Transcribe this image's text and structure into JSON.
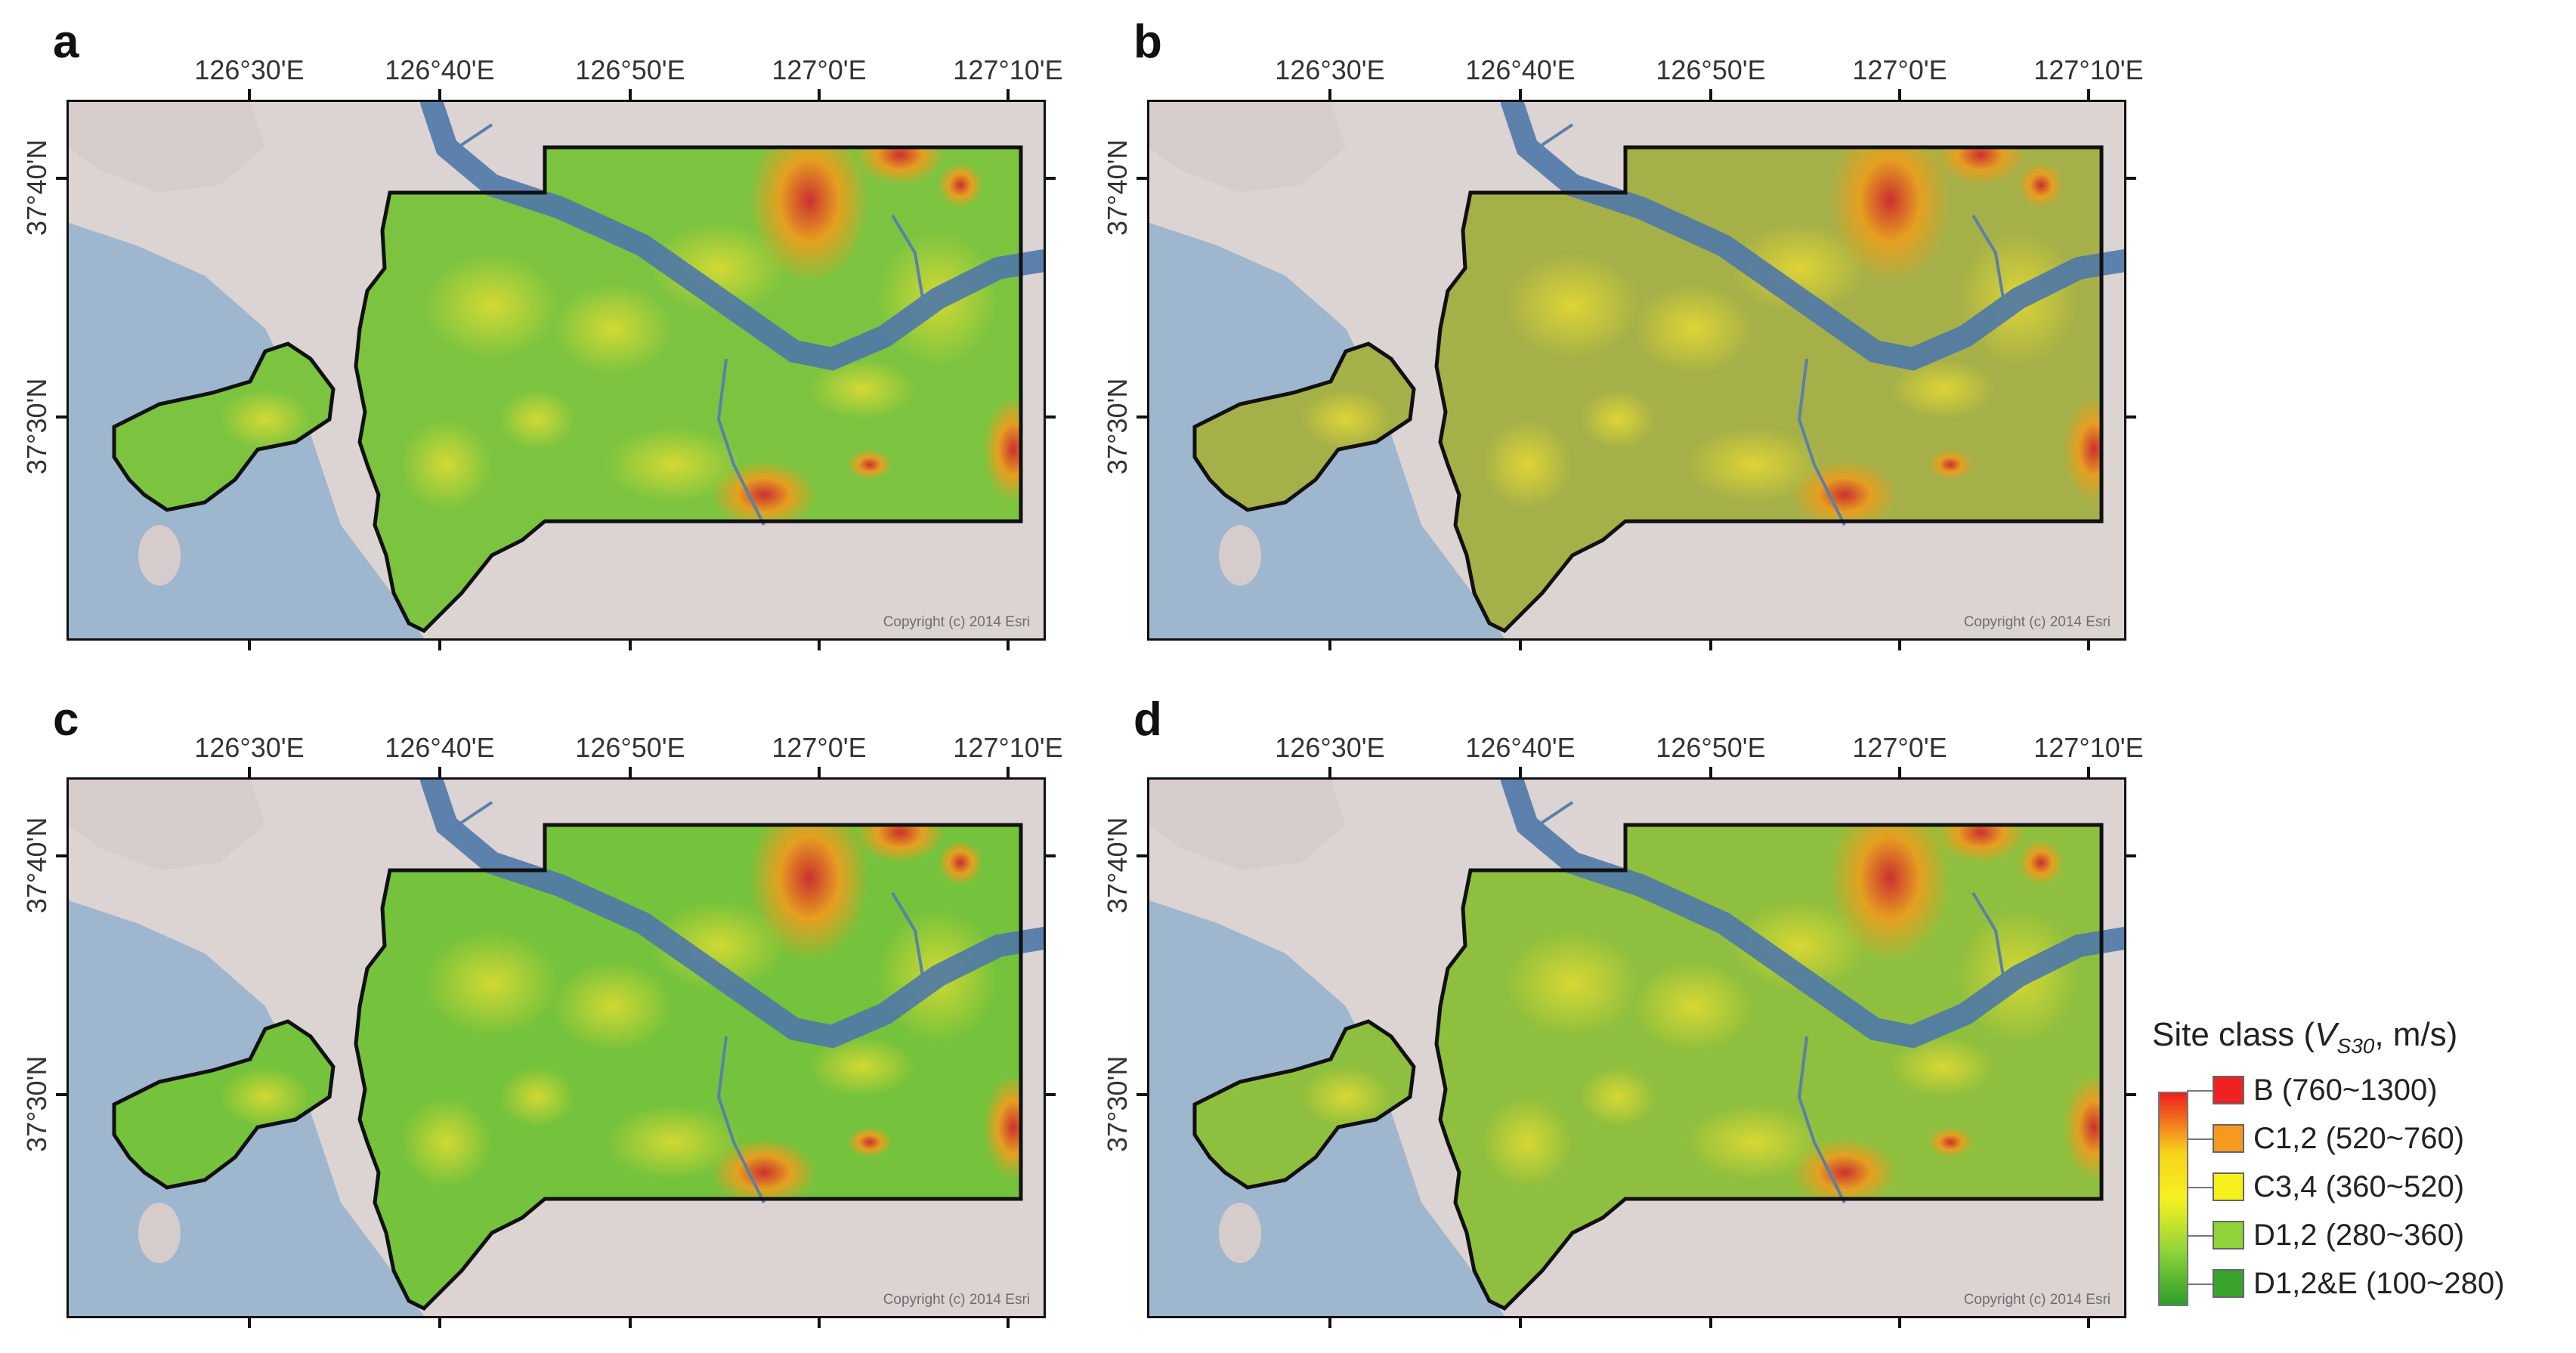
{
  "panels": [
    {
      "letter": "a",
      "copyright": "Copyright (c) 2014 Esri"
    },
    {
      "letter": "b",
      "copyright": "Copyright (c) 2014 Esri"
    },
    {
      "letter": "c",
      "copyright": "Copyright (c) 2014 Esri"
    },
    {
      "letter": "d",
      "copyright": "Copyright (c) 2014 Esri"
    }
  ],
  "longitude_labels": [
    "126°30'E",
    "126°40'E",
    "126°50'E",
    "127°0'E",
    "127°10'E"
  ],
  "latitude_labels": [
    "37°40'N",
    "37°30'N"
  ],
  "legend": {
    "title_prefix": "Site class (",
    "title_var": "V",
    "title_sub": "S30",
    "title_suffix": ", m/s)",
    "items": [
      {
        "label": "B (760~1300)",
        "color": "#ee2222"
      },
      {
        "label": "C1,2 (520~760)",
        "color": "#f39a1f"
      },
      {
        "label": "C3,4 (360~520)",
        "color": "#f5ef1c"
      },
      {
        "label": "D1,2 (280~360)",
        "color": "#8fd33a"
      },
      {
        "label": "D1,2&E (100~280)",
        "color": "#3aa52c"
      }
    ]
  }
}
